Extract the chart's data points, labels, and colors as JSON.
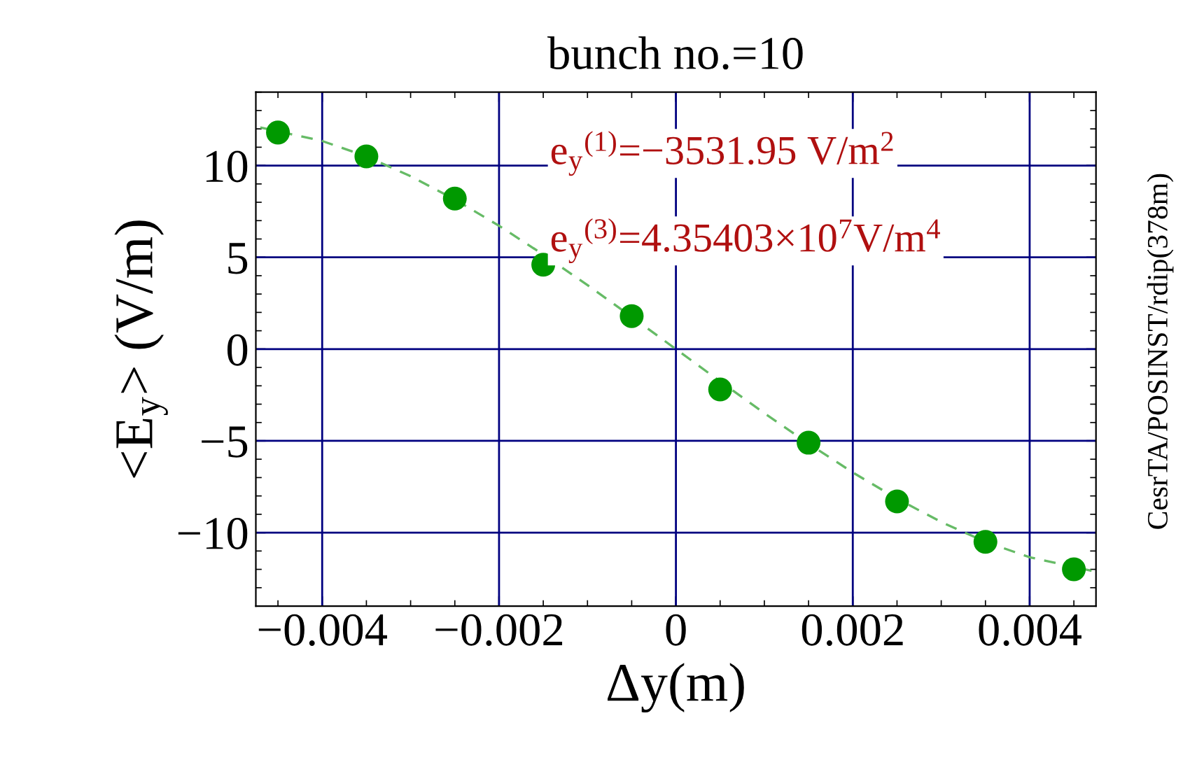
{
  "chart_data": {
    "type": "scatter",
    "title": "bunch no.=10",
    "xlabel": "Δy(m)",
    "ylabel": "<E$_{y}$> (V/m)",
    "annotations": [
      {
        "text": "e$_{y}$$^{(1)}$=−3531.95 V/m$^{2}$"
      },
      {
        "text": "e$_{y}$$^{(3)}$=4.35403×10$^{7}$V/m$^{4}$"
      },
      {
        "text": "CesrTA/POSINST/rdip(378m)"
      }
    ],
    "x": [
      -0.0045,
      -0.0035,
      -0.0025,
      -0.0015,
      -0.0005,
      0.0005,
      0.0015,
      0.0025,
      0.0035,
      0.0045
    ],
    "series": [
      {
        "color": "#009900",
        "marker": "circle",
        "values": [
          11.8,
          10.5,
          8.2,
          4.6,
          1.8,
          -2.2,
          -5.1,
          -8.3,
          -10.5,
          -12.0
        ]
      },
      {
        "type": "line",
        "color": "#66bb66",
        "line_style": "dashed",
        "x": [
          -0.0047,
          -0.004,
          -0.0035,
          -0.003,
          -0.0025,
          -0.002,
          -0.0015,
          -0.001,
          -0.0005,
          0,
          0.0005,
          0.001,
          0.0015,
          0.002,
          0.0025,
          0.003,
          0.0035,
          0.004,
          0.0047
        ],
        "values": [
          12.08,
          11.34,
          10.5,
          9.42,
          8.15,
          6.72,
          5.15,
          3.49,
          1.76,
          0,
          -1.76,
          -3.49,
          -5.15,
          -6.72,
          -8.15,
          -9.42,
          -10.5,
          -11.34,
          -12.08
        ]
      }
    ],
    "xlim": [
      -0.00475,
      0.00475
    ],
    "ylim": [
      -14,
      14
    ],
    "xticks": [
      {
        "value": -0.004,
        "label": "−0.004"
      },
      {
        "value": -0.002,
        "label": "−0.002"
      },
      0,
      0.002,
      0.004
    ],
    "yticks": [
      {
        "value": -10,
        "label": "−10"
      },
      {
        "value": -5,
        "label": "−5"
      },
      0,
      5,
      10
    ],
    "grid": true,
    "legend": false
  }
}
